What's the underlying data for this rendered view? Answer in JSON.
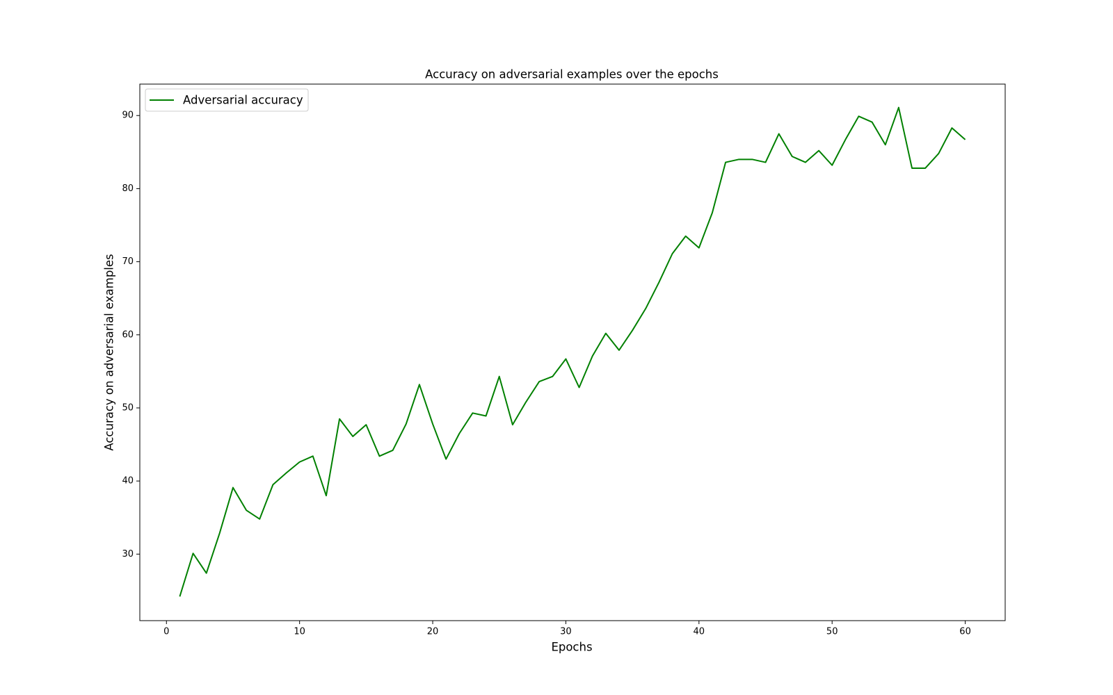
{
  "chart_data": {
    "type": "line",
    "title": "Accuracy on adversarial examples over the epochs",
    "xlabel": "Epochs",
    "ylabel": "Accuracy on adversarial examples",
    "xlim": [
      -2,
      63
    ],
    "ylim": [
      20.9,
      94.3
    ],
    "xticks": [
      0,
      10,
      20,
      30,
      40,
      50,
      60
    ],
    "yticks": [
      30,
      40,
      50,
      60,
      70,
      80,
      90
    ],
    "grid": false,
    "legend_position": "upper-left",
    "colors": {
      "series": "#008000",
      "axes": "#000000",
      "legend_border": "#cccccc"
    },
    "series": [
      {
        "name": "Adversarial accuracy",
        "x": [
          1,
          2,
          3,
          4,
          5,
          6,
          7,
          8,
          9,
          10,
          11,
          12,
          13,
          14,
          15,
          16,
          17,
          18,
          19,
          20,
          21,
          22,
          23,
          24,
          25,
          26,
          27,
          28,
          29,
          30,
          31,
          32,
          33,
          34,
          35,
          36,
          37,
          38,
          39,
          40,
          41,
          42,
          43,
          44,
          45,
          46,
          47,
          48,
          49,
          50,
          51,
          52,
          53,
          54,
          55,
          56,
          57,
          58,
          59,
          60
        ],
        "y": [
          24.2,
          30.1,
          27.4,
          32.9,
          39.1,
          36.0,
          34.8,
          39.5,
          41.1,
          42.6,
          43.4,
          38.0,
          48.5,
          46.1,
          47.7,
          43.4,
          44.2,
          47.8,
          53.2,
          47.8,
          43.0,
          46.5,
          49.3,
          48.9,
          54.3,
          47.7,
          50.8,
          53.6,
          54.3,
          56.7,
          52.8,
          57.1,
          60.2,
          57.9,
          60.6,
          63.6,
          67.2,
          71.1,
          73.5,
          71.9,
          76.7,
          83.6,
          84.0,
          84.0,
          83.6,
          87.5,
          84.4,
          83.6,
          85.2,
          83.2,
          86.7,
          89.9,
          89.1,
          86.0,
          91.1,
          82.8,
          82.8,
          84.8,
          88.3,
          86.7
        ]
      }
    ]
  }
}
